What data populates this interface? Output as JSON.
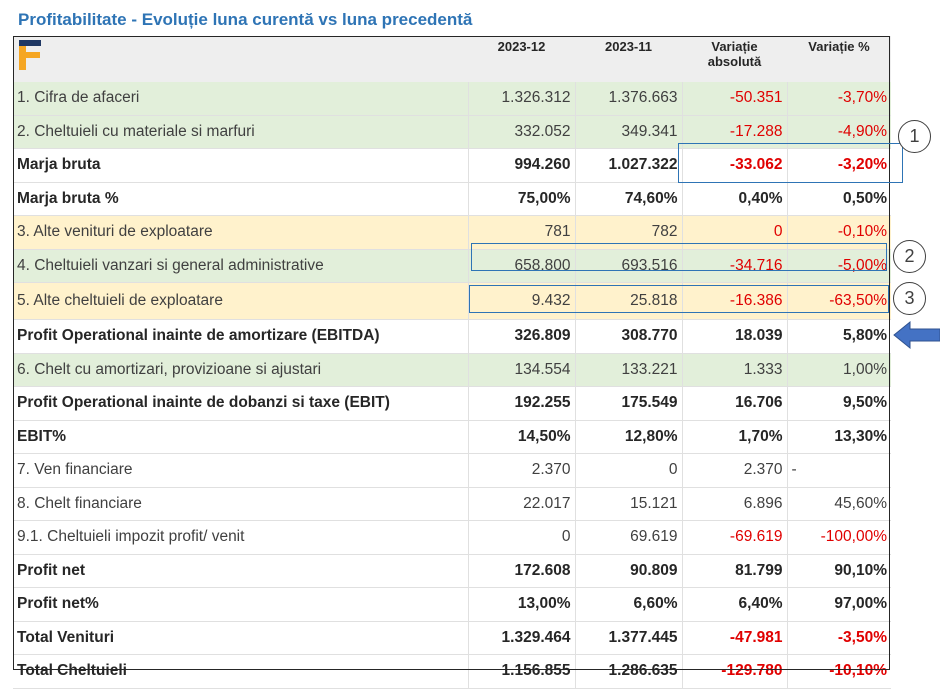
{
  "title": "Profitabilitate - Evoluție luna curentă vs luna precedentă",
  "header": {
    "logo_icon": "company-logo-icon",
    "col1": "2023-12",
    "col2": "2023-11",
    "col3_line1": "Variație",
    "col3_line2": "absolută",
    "col4": "Variație %"
  },
  "rows": [
    {
      "label": "1. Cifra de afaceri",
      "v1": "1.326.312",
      "v2": "1.376.663",
      "abs": "-50.351",
      "pct": "-3,70%"
    },
    {
      "label": "2. Cheltuieli cu materiale si marfuri",
      "v1": "332.052",
      "v2": "349.341",
      "abs": "-17.288",
      "pct": "-4,90%"
    },
    {
      "label": "Marja bruta",
      "v1": "994.260",
      "v2": "1.027.322",
      "abs": "-33.062",
      "pct": "-3,20%"
    },
    {
      "label": "Marja bruta %",
      "v1": "75,00%",
      "v2": "74,60%",
      "abs": "0,40%",
      "pct": "0,50%"
    },
    {
      "label": "3. Alte venituri de exploatare",
      "v1": "781",
      "v2": "782",
      "abs": "0",
      "pct": "-0,10%"
    },
    {
      "label": "4. Cheltuieli vanzari si general administrative",
      "v1": "658.800",
      "v2": "693.516",
      "abs": "-34.716",
      "pct": "-5,00%"
    },
    {
      "label": "5. Alte cheltuieli de exploatare",
      "v1": "9.432",
      "v2": "25.818",
      "abs": "-16.386",
      "pct": "-63,50%"
    },
    {
      "label": "Profit Operational inainte de amortizare (EBITDA)",
      "v1": "326.809",
      "v2": "308.770",
      "abs": "18.039",
      "pct": "5,80%"
    },
    {
      "label": "6. Chelt cu amortizari, provizioane si ajustari",
      "v1": "134.554",
      "v2": "133.221",
      "abs": "1.333",
      "pct": "1,00%"
    },
    {
      "label": "Profit Operational inainte de dobanzi si taxe (EBIT)",
      "v1": "192.255",
      "v2": "175.549",
      "abs": "16.706",
      "pct": "9,50%"
    },
    {
      "label": "EBIT%",
      "v1": "14,50%",
      "v2": "12,80%",
      "abs": "1,70%",
      "pct": "13,30%"
    },
    {
      "label": "7. Ven financiare",
      "v1": "2.370",
      "v2": "0",
      "abs": "2.370",
      "pct": "-"
    },
    {
      "label": "8. Chelt financiare",
      "v1": "22.017",
      "v2": "15.121",
      "abs": "6.896",
      "pct": "45,60%"
    },
    {
      "label": "9.1. Cheltuieli impozit profit/ venit",
      "v1": "0",
      "v2": "69.619",
      "abs": "-69.619",
      "pct": "-100,00%"
    },
    {
      "label": "Profit net",
      "v1": "172.608",
      "v2": "90.809",
      "abs": "81.799",
      "pct": "90,10%"
    },
    {
      "label": "Profit net%",
      "v1": "13,00%",
      "v2": "6,60%",
      "abs": "6,40%",
      "pct": "97,00%"
    },
    {
      "label": "Total Venituri",
      "v1": "1.329.464",
      "v2": "1.377.445",
      "abs": "-47.981",
      "pct": "-3,50%"
    },
    {
      "label": "Total Cheltuieli",
      "v1": "1.156.855",
      "v2": "1.286.635",
      "abs": "-129.780",
      "pct": "-10,10%"
    }
  ],
  "annotations": {
    "marker1": "1",
    "marker2": "2",
    "marker3": "3",
    "arrow_icon": "arrow-left-icon",
    "box_color": "#2e74b5",
    "arrow_color": "#4472c4"
  },
  "colors": {
    "title": "#2e74b5",
    "green_row": "#e2efda",
    "yellow_row": "#fff2cc",
    "negative": "#e00000"
  }
}
